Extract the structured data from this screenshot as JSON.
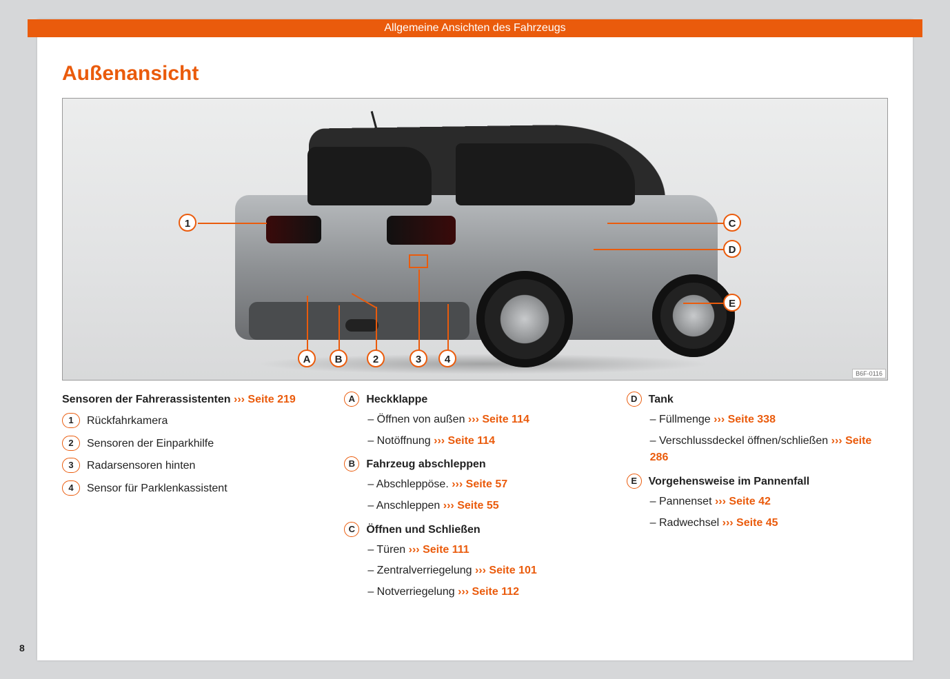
{
  "header": {
    "title": "Allgemeine Ansichten des Fahrzeugs"
  },
  "section_title": "Außenansicht",
  "figure": {
    "ref": "B6F-0116",
    "callouts_num": [
      "1",
      "2",
      "3",
      "4"
    ],
    "callouts_let": [
      "A",
      "B",
      "C",
      "D",
      "E"
    ],
    "colors": {
      "accent": "#ea5b0c",
      "body": "#8e9194",
      "roof": "#2a2a2a"
    }
  },
  "col1": {
    "head_pre": "Sensoren der Fahrerassistenten ",
    "head_arrow": "›››",
    "head_post": " Seite 219",
    "items": [
      {
        "n": "1",
        "t": "Rückfahrkamera"
      },
      {
        "n": "2",
        "t": "Sensoren der Einparkhilfe"
      },
      {
        "n": "3",
        "t": "Radarsensoren hinten"
      },
      {
        "n": "4",
        "t": "Sensor für Parklenkassistent"
      }
    ]
  },
  "col2": {
    "groups": [
      {
        "l": "A",
        "title": "Heckklappe",
        "subs": [
          {
            "t": "Öffnen von außen ",
            "ref": "Seite 114"
          },
          {
            "t": "Notöffnung ",
            "ref": "Seite 114"
          }
        ]
      },
      {
        "l": "B",
        "title": "Fahrzeug abschleppen",
        "subs": [
          {
            "t": "Abschleppöse. ",
            "ref": "Seite 57"
          },
          {
            "t": "Anschleppen ",
            "ref": "Seite 55"
          }
        ]
      },
      {
        "l": "C",
        "title": "Öffnen und Schließen",
        "subs": [
          {
            "t": "Türen ",
            "ref": "Seite 111"
          },
          {
            "t": "Zentralverriegelung ",
            "ref": "Seite 101"
          },
          {
            "t": "Notverriegelung ",
            "ref": "Seite 112"
          }
        ]
      }
    ]
  },
  "col3": {
    "groups": [
      {
        "l": "D",
        "title": "Tank",
        "subs": [
          {
            "t": "Füllmenge ",
            "ref": "Seite 338"
          },
          {
            "t": "Verschlussdeckel öffnen/schließen ",
            "ref": "Seite 286"
          }
        ]
      },
      {
        "l": "E",
        "title": "Vorgehensweise im Pannenfall",
        "subs": [
          {
            "t": "Pannenset ",
            "ref": "Seite 42"
          },
          {
            "t": "Radwechsel ",
            "ref": "Seite 45"
          }
        ]
      }
    ]
  },
  "arrow": "›››",
  "page_number": "8"
}
